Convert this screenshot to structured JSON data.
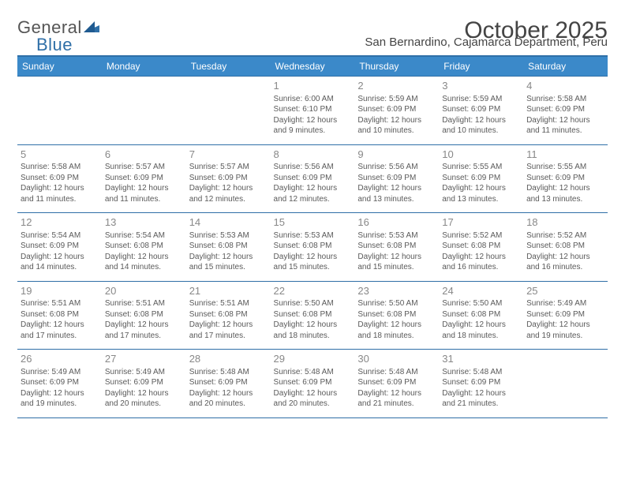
{
  "logo": {
    "text1": "General",
    "text2": "Blue"
  },
  "title": "October 2025",
  "subtitle": "San Bernardino, Cajamarca Department, Peru",
  "colors": {
    "header_bg": "#3b89c9",
    "header_border": "#2f6fa7",
    "text": "#5a5a5a",
    "daynum": "#888888",
    "title_text": "#444444"
  },
  "day_headers": [
    "Sunday",
    "Monday",
    "Tuesday",
    "Wednesday",
    "Thursday",
    "Friday",
    "Saturday"
  ],
  "weeks": [
    [
      {
        "n": "",
        "sr": "",
        "ss": "",
        "dl": ""
      },
      {
        "n": "",
        "sr": "",
        "ss": "",
        "dl": ""
      },
      {
        "n": "",
        "sr": "",
        "ss": "",
        "dl": ""
      },
      {
        "n": "1",
        "sr": "6:00 AM",
        "ss": "6:10 PM",
        "dl": "12 hours and 9 minutes."
      },
      {
        "n": "2",
        "sr": "5:59 AM",
        "ss": "6:09 PM",
        "dl": "12 hours and 10 minutes."
      },
      {
        "n": "3",
        "sr": "5:59 AM",
        "ss": "6:09 PM",
        "dl": "12 hours and 10 minutes."
      },
      {
        "n": "4",
        "sr": "5:58 AM",
        "ss": "6:09 PM",
        "dl": "12 hours and 11 minutes."
      }
    ],
    [
      {
        "n": "5",
        "sr": "5:58 AM",
        "ss": "6:09 PM",
        "dl": "12 hours and 11 minutes."
      },
      {
        "n": "6",
        "sr": "5:57 AM",
        "ss": "6:09 PM",
        "dl": "12 hours and 11 minutes."
      },
      {
        "n": "7",
        "sr": "5:57 AM",
        "ss": "6:09 PM",
        "dl": "12 hours and 12 minutes."
      },
      {
        "n": "8",
        "sr": "5:56 AM",
        "ss": "6:09 PM",
        "dl": "12 hours and 12 minutes."
      },
      {
        "n": "9",
        "sr": "5:56 AM",
        "ss": "6:09 PM",
        "dl": "12 hours and 13 minutes."
      },
      {
        "n": "10",
        "sr": "5:55 AM",
        "ss": "6:09 PM",
        "dl": "12 hours and 13 minutes."
      },
      {
        "n": "11",
        "sr": "5:55 AM",
        "ss": "6:09 PM",
        "dl": "12 hours and 13 minutes."
      }
    ],
    [
      {
        "n": "12",
        "sr": "5:54 AM",
        "ss": "6:09 PM",
        "dl": "12 hours and 14 minutes."
      },
      {
        "n": "13",
        "sr": "5:54 AM",
        "ss": "6:08 PM",
        "dl": "12 hours and 14 minutes."
      },
      {
        "n": "14",
        "sr": "5:53 AM",
        "ss": "6:08 PM",
        "dl": "12 hours and 15 minutes."
      },
      {
        "n": "15",
        "sr": "5:53 AM",
        "ss": "6:08 PM",
        "dl": "12 hours and 15 minutes."
      },
      {
        "n": "16",
        "sr": "5:53 AM",
        "ss": "6:08 PM",
        "dl": "12 hours and 15 minutes."
      },
      {
        "n": "17",
        "sr": "5:52 AM",
        "ss": "6:08 PM",
        "dl": "12 hours and 16 minutes."
      },
      {
        "n": "18",
        "sr": "5:52 AM",
        "ss": "6:08 PM",
        "dl": "12 hours and 16 minutes."
      }
    ],
    [
      {
        "n": "19",
        "sr": "5:51 AM",
        "ss": "6:08 PM",
        "dl": "12 hours and 17 minutes."
      },
      {
        "n": "20",
        "sr": "5:51 AM",
        "ss": "6:08 PM",
        "dl": "12 hours and 17 minutes."
      },
      {
        "n": "21",
        "sr": "5:51 AM",
        "ss": "6:08 PM",
        "dl": "12 hours and 17 minutes."
      },
      {
        "n": "22",
        "sr": "5:50 AM",
        "ss": "6:08 PM",
        "dl": "12 hours and 18 minutes."
      },
      {
        "n": "23",
        "sr": "5:50 AM",
        "ss": "6:08 PM",
        "dl": "12 hours and 18 minutes."
      },
      {
        "n": "24",
        "sr": "5:50 AM",
        "ss": "6:08 PM",
        "dl": "12 hours and 18 minutes."
      },
      {
        "n": "25",
        "sr": "5:49 AM",
        "ss": "6:09 PM",
        "dl": "12 hours and 19 minutes."
      }
    ],
    [
      {
        "n": "26",
        "sr": "5:49 AM",
        "ss": "6:09 PM",
        "dl": "12 hours and 19 minutes."
      },
      {
        "n": "27",
        "sr": "5:49 AM",
        "ss": "6:09 PM",
        "dl": "12 hours and 20 minutes."
      },
      {
        "n": "28",
        "sr": "5:48 AM",
        "ss": "6:09 PM",
        "dl": "12 hours and 20 minutes."
      },
      {
        "n": "29",
        "sr": "5:48 AM",
        "ss": "6:09 PM",
        "dl": "12 hours and 20 minutes."
      },
      {
        "n": "30",
        "sr": "5:48 AM",
        "ss": "6:09 PM",
        "dl": "12 hours and 21 minutes."
      },
      {
        "n": "31",
        "sr": "5:48 AM",
        "ss": "6:09 PM",
        "dl": "12 hours and 21 minutes."
      },
      {
        "n": "",
        "sr": "",
        "ss": "",
        "dl": ""
      }
    ]
  ],
  "labels": {
    "sunrise": "Sunrise: ",
    "sunset": "Sunset: ",
    "daylight": "Daylight: "
  }
}
